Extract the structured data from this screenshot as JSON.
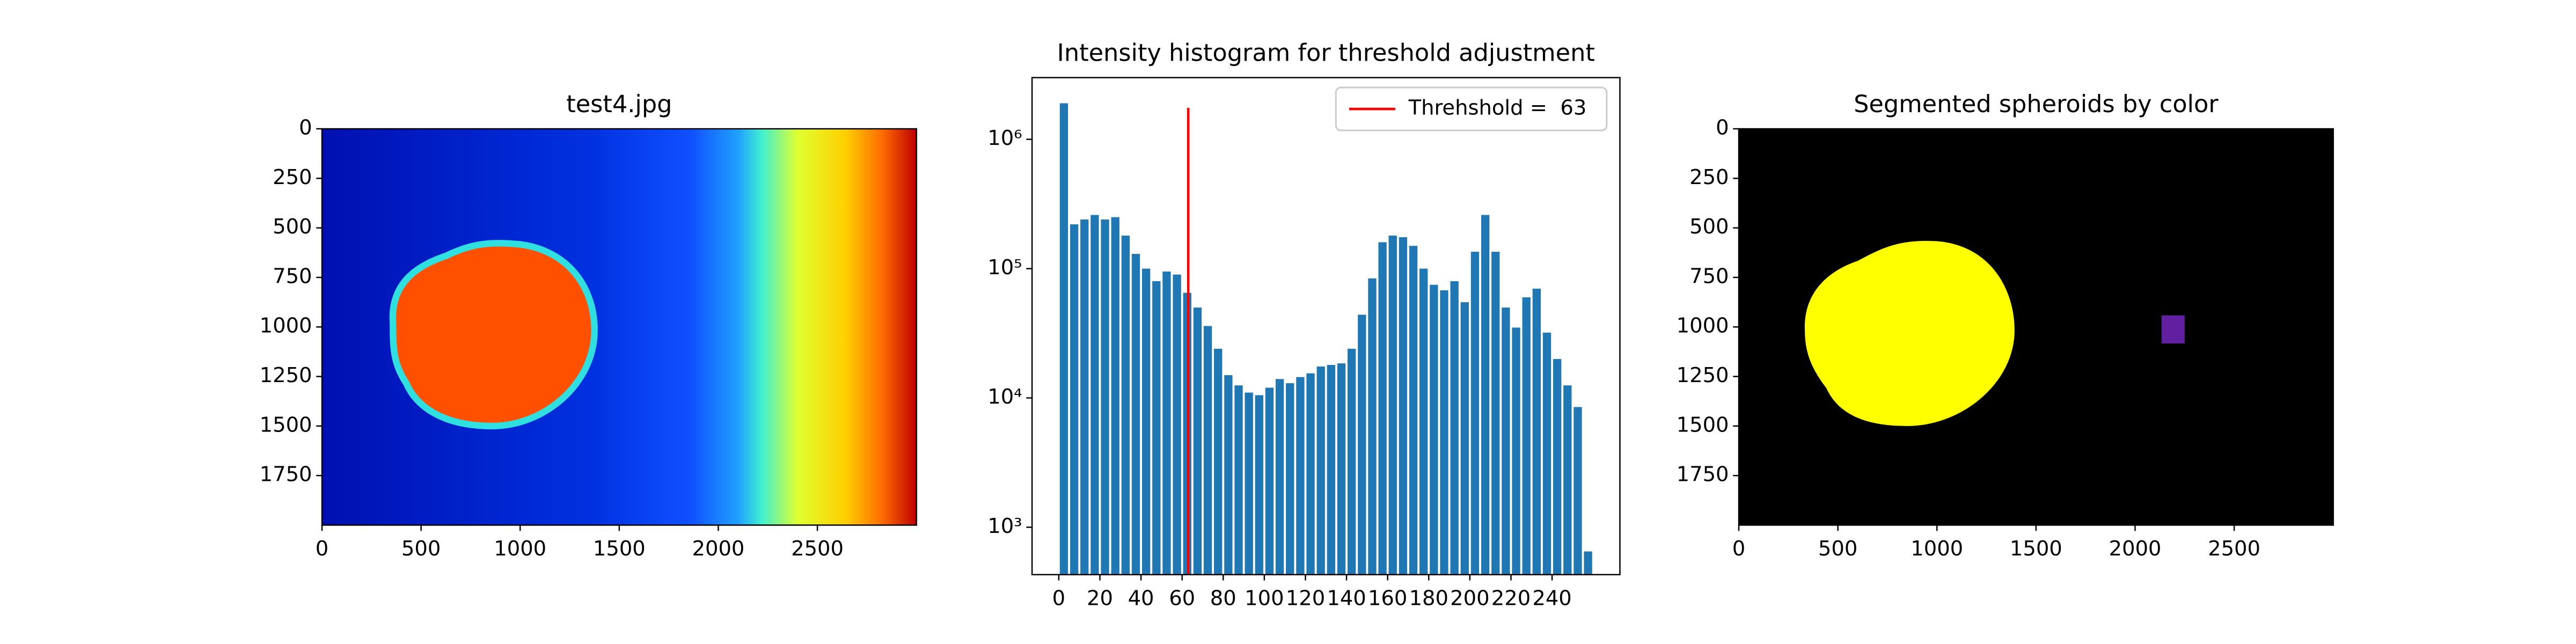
{
  "chart_data": [
    {
      "type": "image",
      "title": "test4.jpg",
      "xlim": [
        0,
        3000
      ],
      "ylim": [
        2000,
        0
      ],
      "xticks": [
        0,
        500,
        1000,
        1500,
        2000,
        2500
      ],
      "yticks": [
        0,
        250,
        500,
        750,
        1000,
        1250,
        1500,
        1750
      ]
    },
    {
      "type": "histogram",
      "title": "Intensity histogram for threshold adjustment",
      "bins": [
        0,
        5,
        10,
        15,
        20,
        25,
        30,
        35,
        40,
        45,
        50,
        55,
        60,
        65,
        70,
        75,
        80,
        85,
        90,
        95,
        100,
        105,
        110,
        115,
        120,
        125,
        130,
        135,
        140,
        145,
        150,
        155,
        160,
        165,
        170,
        175,
        180,
        185,
        190,
        195,
        200,
        205,
        210,
        215,
        220,
        225,
        230,
        235,
        240,
        245,
        250,
        255,
        260
      ],
      "values": [
        1900000,
        220000,
        240000,
        260000,
        240000,
        250000,
        180000,
        130000,
        100000,
        80000,
        95000,
        90000,
        65000,
        50000,
        36000,
        24000,
        15000,
        12500,
        11000,
        10500,
        12000,
        14000,
        13000,
        14500,
        15500,
        17500,
        18000,
        18500,
        24000,
        44000,
        84000,
        160000,
        180000,
        175000,
        150000,
        100000,
        75000,
        68000,
        80000,
        55000,
        135000,
        260000,
        135000,
        50000,
        35000,
        60000,
        70000,
        32000,
        20000,
        12500,
        8500,
        650
      ],
      "color": "#1f77b4",
      "xlim": [
        -13,
        273
      ],
      "ylim": [
        430,
        3000000
      ],
      "log_y": true,
      "xticks": [
        0,
        20,
        40,
        60,
        80,
        100,
        120,
        140,
        160,
        180,
        200,
        220,
        240
      ],
      "yticks": [
        {
          "value": 1000,
          "label": "10³"
        },
        {
          "value": 10000,
          "label": "10⁴"
        },
        {
          "value": 100000,
          "label": "10⁵"
        },
        {
          "value": 1000000,
          "label": "10⁶"
        }
      ],
      "threshold": {
        "name": "Threhshold =  63",
        "x": 63,
        "ymax": 1750000,
        "color": "#ff0000"
      },
      "legend": "upper right"
    },
    {
      "type": "image",
      "title": "Segmented spheroids by color",
      "xlim": [
        0,
        3000
      ],
      "ylim": [
        2000,
        0
      ],
      "xticks": [
        0,
        500,
        1000,
        1500,
        2000,
        2500
      ],
      "yticks": [
        0,
        250,
        500,
        750,
        1000,
        1250,
        1500,
        1750
      ]
    }
  ]
}
